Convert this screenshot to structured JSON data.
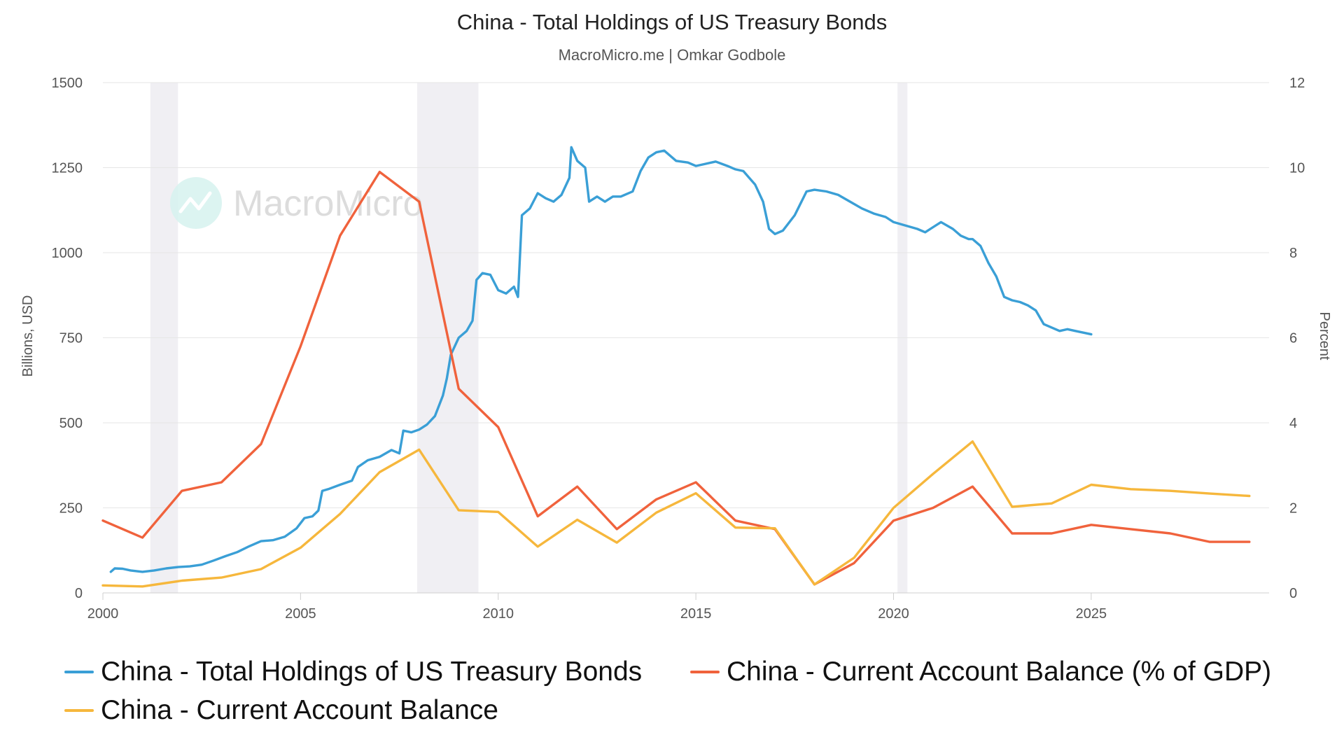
{
  "chart_data": {
    "type": "line",
    "title": "China - Total Holdings of US Treasury Bonds",
    "subtitle": "MacroMicro.me | Omkar Godbole",
    "watermark": "MacroMicro",
    "ylabel_left": "Billions, USD",
    "ylabel_right": "Percent",
    "ylim_left": [
      0,
      1500
    ],
    "ylim_right": [
      0,
      12
    ],
    "yticks_left": [
      "0",
      "250",
      "500",
      "750",
      "1000",
      "1250",
      "1500"
    ],
    "yticks_right": [
      "0",
      "2",
      "4",
      "6",
      "8",
      "10",
      "12"
    ],
    "xlim": [
      2000,
      2029.5
    ],
    "xticks": [
      "2000",
      "2005",
      "2010",
      "2015",
      "2020",
      "2025"
    ],
    "grid": true,
    "legend_position": "bottom",
    "recession_shading": [
      [
        2001.2,
        2001.9
      ],
      [
        2007.95,
        2009.5
      ],
      [
        2020.1,
        2020.35
      ]
    ],
    "series": [
      {
        "name": "China - Total Holdings of US Treasury Bonds",
        "axis": "left",
        "color": "#3a9fd6",
        "points": [
          [
            2000.2,
            62
          ],
          [
            2000.3,
            72
          ],
          [
            2000.5,
            71
          ],
          [
            2000.7,
            66
          ],
          [
            2001.0,
            62
          ],
          [
            2001.3,
            66
          ],
          [
            2001.6,
            72
          ],
          [
            2001.9,
            76
          ],
          [
            2002.2,
            78
          ],
          [
            2002.5,
            83
          ],
          [
            2002.8,
            95
          ],
          [
            2003.1,
            108
          ],
          [
            2003.4,
            120
          ],
          [
            2003.7,
            137
          ],
          [
            2004.0,
            152
          ],
          [
            2004.3,
            155
          ],
          [
            2004.6,
            165
          ],
          [
            2004.9,
            190
          ],
          [
            2005.1,
            220
          ],
          [
            2005.3,
            225
          ],
          [
            2005.45,
            242
          ],
          [
            2005.55,
            300
          ],
          [
            2005.7,
            305
          ],
          [
            2006.0,
            318
          ],
          [
            2006.3,
            330
          ],
          [
            2006.45,
            370
          ],
          [
            2006.7,
            390
          ],
          [
            2007.0,
            400
          ],
          [
            2007.3,
            420
          ],
          [
            2007.5,
            410
          ],
          [
            2007.6,
            477
          ],
          [
            2007.8,
            472
          ],
          [
            2008.0,
            480
          ],
          [
            2008.2,
            495
          ],
          [
            2008.4,
            520
          ],
          [
            2008.6,
            580
          ],
          [
            2008.7,
            630
          ],
          [
            2008.8,
            700
          ],
          [
            2009.0,
            750
          ],
          [
            2009.2,
            770
          ],
          [
            2009.35,
            800
          ],
          [
            2009.45,
            920
          ],
          [
            2009.6,
            940
          ],
          [
            2009.8,
            935
          ],
          [
            2010.0,
            890
          ],
          [
            2010.2,
            880
          ],
          [
            2010.4,
            900
          ],
          [
            2010.5,
            870
          ],
          [
            2010.6,
            1110
          ],
          [
            2010.8,
            1130
          ],
          [
            2011.0,
            1175
          ],
          [
            2011.2,
            1160
          ],
          [
            2011.4,
            1150
          ],
          [
            2011.6,
            1170
          ],
          [
            2011.8,
            1220
          ],
          [
            2011.85,
            1310
          ],
          [
            2012.0,
            1270
          ],
          [
            2012.2,
            1250
          ],
          [
            2012.3,
            1150
          ],
          [
            2012.5,
            1165
          ],
          [
            2012.7,
            1150
          ],
          [
            2012.9,
            1165
          ],
          [
            2013.1,
            1165
          ],
          [
            2013.4,
            1180
          ],
          [
            2013.6,
            1240
          ],
          [
            2013.8,
            1280
          ],
          [
            2014.0,
            1295
          ],
          [
            2014.2,
            1300
          ],
          [
            2014.5,
            1270
          ],
          [
            2014.8,
            1265
          ],
          [
            2015.0,
            1255
          ],
          [
            2015.2,
            1260
          ],
          [
            2015.5,
            1268
          ],
          [
            2015.8,
            1255
          ],
          [
            2016.0,
            1245
          ],
          [
            2016.2,
            1240
          ],
          [
            2016.5,
            1200
          ],
          [
            2016.7,
            1150
          ],
          [
            2016.85,
            1070
          ],
          [
            2017.0,
            1055
          ],
          [
            2017.2,
            1065
          ],
          [
            2017.5,
            1110
          ],
          [
            2017.8,
            1180
          ],
          [
            2018.0,
            1185
          ],
          [
            2018.3,
            1180
          ],
          [
            2018.6,
            1170
          ],
          [
            2018.9,
            1150
          ],
          [
            2019.2,
            1130
          ],
          [
            2019.5,
            1115
          ],
          [
            2019.8,
            1105
          ],
          [
            2020.0,
            1090
          ],
          [
            2020.3,
            1080
          ],
          [
            2020.6,
            1070
          ],
          [
            2020.8,
            1060
          ],
          [
            2021.0,
            1075
          ],
          [
            2021.2,
            1090
          ],
          [
            2021.5,
            1070
          ],
          [
            2021.7,
            1050
          ],
          [
            2021.9,
            1040
          ],
          [
            2022.0,
            1040
          ],
          [
            2022.2,
            1020
          ],
          [
            2022.4,
            970
          ],
          [
            2022.6,
            930
          ],
          [
            2022.8,
            870
          ],
          [
            2023.0,
            860
          ],
          [
            2023.2,
            855
          ],
          [
            2023.4,
            845
          ],
          [
            2023.6,
            830
          ],
          [
            2023.8,
            790
          ],
          [
            2024.0,
            780
          ],
          [
            2024.2,
            770
          ],
          [
            2024.4,
            775
          ],
          [
            2024.6,
            770
          ],
          [
            2024.8,
            765
          ],
          [
            2025.0,
            760
          ]
        ]
      },
      {
        "name": "China - Current Account Balance (% of GDP)",
        "axis": "right",
        "color": "#f0623c",
        "points": [
          [
            2000,
            1.7
          ],
          [
            2001,
            1.3
          ],
          [
            2002,
            2.4
          ],
          [
            2003,
            2.6
          ],
          [
            2004,
            3.5
          ],
          [
            2005,
            5.8
          ],
          [
            2006,
            8.4
          ],
          [
            2007,
            9.9
          ],
          [
            2008,
            9.2
          ],
          [
            2009,
            4.8
          ],
          [
            2010,
            3.9
          ],
          [
            2011,
            1.8
          ],
          [
            2012,
            2.5
          ],
          [
            2013,
            1.5
          ],
          [
            2014,
            2.2
          ],
          [
            2015,
            2.6
          ],
          [
            2016,
            1.7
          ],
          [
            2017,
            1.5
          ],
          [
            2018,
            0.2
          ],
          [
            2019,
            0.7
          ],
          [
            2020,
            1.7
          ],
          [
            2021,
            2.0
          ],
          [
            2022,
            2.5
          ],
          [
            2023,
            1.4
          ],
          [
            2024,
            1.4
          ],
          [
            2025,
            1.6
          ],
          [
            2026,
            1.5
          ],
          [
            2027,
            1.4
          ],
          [
            2028,
            1.2
          ],
          [
            2029,
            1.2
          ]
        ]
      },
      {
        "name": "China - Current Account Balance",
        "axis": "left",
        "color": "#f6b73c",
        "points": [
          [
            2000,
            22
          ],
          [
            2001,
            19
          ],
          [
            2002,
            36
          ],
          [
            2003,
            45
          ],
          [
            2004,
            70
          ],
          [
            2005,
            133
          ],
          [
            2006,
            232
          ],
          [
            2007,
            355
          ],
          [
            2008,
            421
          ],
          [
            2009,
            243
          ],
          [
            2010,
            238
          ],
          [
            2011,
            136
          ],
          [
            2012,
            215
          ],
          [
            2013,
            148
          ],
          [
            2014,
            236
          ],
          [
            2015,
            293
          ],
          [
            2016,
            192
          ],
          [
            2017,
            190
          ],
          [
            2018,
            25
          ],
          [
            2019,
            103
          ],
          [
            2020,
            250
          ],
          [
            2021,
            350
          ],
          [
            2022,
            445
          ],
          [
            2023,
            253
          ],
          [
            2024,
            263
          ],
          [
            2025,
            318
          ],
          [
            2026,
            305
          ],
          [
            2027,
            300
          ],
          [
            2028,
            292
          ],
          [
            2029,
            285
          ]
        ]
      }
    ]
  }
}
